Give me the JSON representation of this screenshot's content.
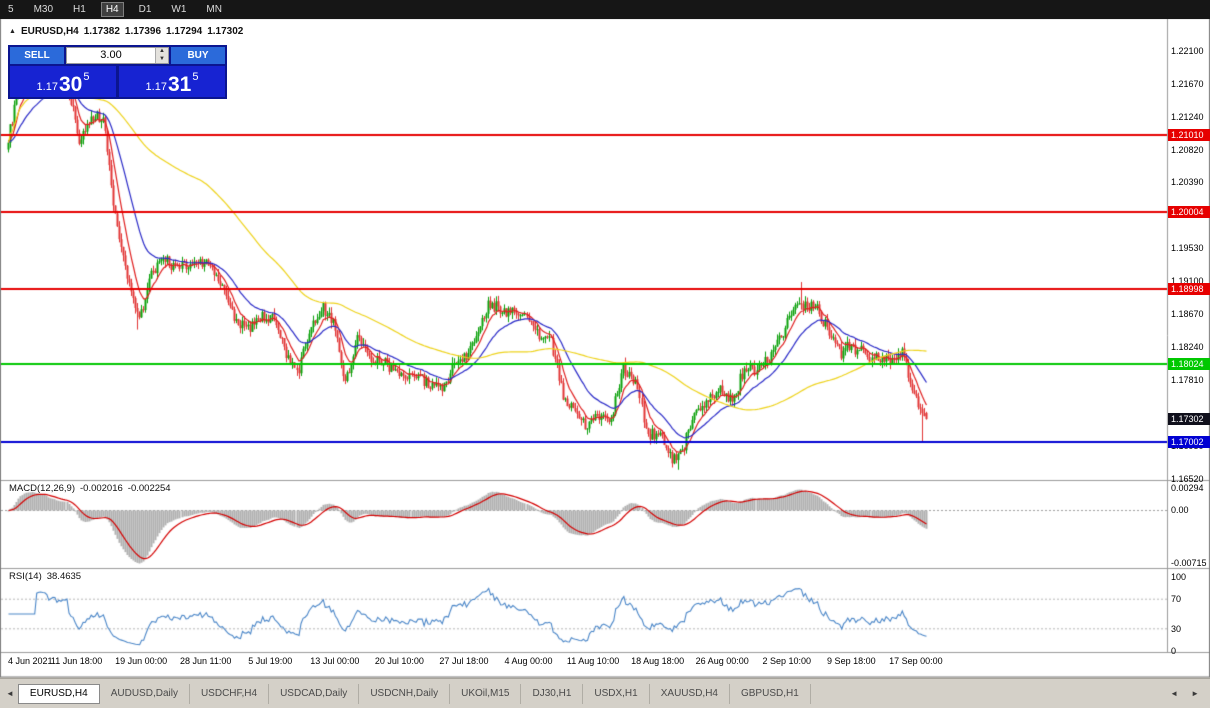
{
  "toolbar": {
    "timeframes": [
      "5",
      "M30",
      "H1",
      "H4",
      "D1",
      "W1",
      "MN"
    ],
    "active": "H4"
  },
  "chart": {
    "title": {
      "marker": "▲",
      "symbol": "EURUSD,H4",
      "open": "1.17382",
      "high": "1.17396",
      "low": "1.17294",
      "close": "1.17302"
    }
  },
  "trade_panel": {
    "sell_label": "SELL",
    "buy_label": "BUY",
    "lot": "3.00",
    "sell_price": {
      "prefix": "1.17",
      "big": "30",
      "sup": "5"
    },
    "buy_price": {
      "prefix": "1.17",
      "big": "31",
      "sup": "5"
    }
  },
  "tabs": {
    "items": [
      {
        "label": "EURUSD,H4",
        "active": true
      },
      {
        "label": "AUDUSD,Daily"
      },
      {
        "label": "USDCHF,H4"
      },
      {
        "label": "USDCAD,Daily"
      },
      {
        "label": "USDCNH,Daily"
      },
      {
        "label": "UKOil,M15"
      },
      {
        "label": "DJ30,H1"
      },
      {
        "label": "USDX,H1"
      },
      {
        "label": "XAUUSD,H4"
      },
      {
        "label": "GBPUSD,H1"
      }
    ],
    "scroll_left_icon": "◄",
    "scroll_right_icon": "►"
  },
  "chart_data": {
    "type": "candlestick",
    "symbol": "EURUSD",
    "timeframe": "H4",
    "bars_per_day": 6,
    "start_price": 1.2082,
    "daily_closes": [
      1.2166,
      1.2175,
      1.2168,
      1.2172,
      1.217,
      1.2096,
      1.2118,
      1.2126,
      1.1995,
      1.1915,
      1.1863,
      1.1919,
      1.194,
      1.1926,
      1.193,
      1.1937,
      1.1925,
      1.1897,
      1.1858,
      1.1846,
      1.1865,
      1.1863,
      1.1823,
      1.179,
      1.1845,
      1.1876,
      1.1861,
      1.1776,
      1.1838,
      1.1813,
      1.1806,
      1.1799,
      1.1782,
      1.1793,
      1.1771,
      1.177,
      1.1802,
      1.1816,
      1.1845,
      1.1885,
      1.187,
      1.1871,
      1.1863,
      1.1837,
      1.1833,
      1.1761,
      1.1738,
      1.172,
      1.1739,
      1.1729,
      1.1795,
      1.1777,
      1.171,
      1.1712,
      1.1675,
      1.1697,
      1.1745,
      1.1755,
      1.177,
      1.1751,
      1.1795,
      1.1797,
      1.181,
      1.184,
      1.1875,
      1.188,
      1.1872,
      1.1842,
      1.1817,
      1.1825,
      1.1813,
      1.181,
      1.1805,
      1.1816,
      1.1766,
      1.173
    ],
    "last_bar": {
      "open": 1.17382,
      "high": 1.17396,
      "low": 1.17294,
      "close": 1.17302
    },
    "extremes": [
      {
        "bar": 64,
        "low": 1.1847
      },
      {
        "bar": 243,
        "high": 1.1891
      },
      {
        "bar": 332,
        "low": 1.1664
      },
      {
        "bar": 393,
        "high": 1.1909
      },
      {
        "bar": 453,
        "low": 1.17008
      }
    ],
    "colors": {
      "bull": "#0aa10a",
      "bear": "#e23535"
    },
    "moving_averages": [
      {
        "period": 8,
        "method": "ema",
        "color": "#e02020"
      },
      {
        "period": 24,
        "method": "ema",
        "color": "#2a2ac8"
      },
      {
        "period": 96,
        "method": "sma",
        "color": "#eed31c"
      }
    ],
    "hlines": [
      {
        "price": 1.2101,
        "label": "1.21010",
        "color": "#e60000"
      },
      {
        "price": 1.20004,
        "label": "1.20004",
        "color": "#e60000"
      },
      {
        "price": 1.18998,
        "label": "1.18998",
        "color": "#e60000"
      },
      {
        "price": 1.18024,
        "label": "1.18024",
        "color": "#00c800"
      },
      {
        "price": 1.17002,
        "label": "1.17002",
        "color": "#0000d2"
      }
    ],
    "bid": {
      "price": 1.17302,
      "label": "1.17302",
      "color": "#10101c"
    },
    "price_axis_ticks": [
      {
        "label": "1.22100",
        "value": 1.221
      },
      {
        "label": "1.21670",
        "value": 1.2167
      },
      {
        "label": "1.21240",
        "value": 1.2124
      },
      {
        "label": "1.20820",
        "value": 1.2082
      },
      {
        "label": "1.20390",
        "value": 1.2039
      },
      {
        "label": "1.19530",
        "value": 1.1953
      },
      {
        "label": "1.19100",
        "value": 1.191
      },
      {
        "label": "1.18670",
        "value": 1.1867
      },
      {
        "label": "1.18240",
        "value": 1.1824
      },
      {
        "label": "1.17810",
        "value": 1.1781
      },
      {
        "label": "1.16950",
        "value": 1.1695
      },
      {
        "label": "1.16520",
        "value": 1.1652
      }
    ],
    "macd": {
      "name": "MACD(12,26,9)",
      "fast": 12,
      "slow": 26,
      "signal": 9,
      "value_main": "-0.002016",
      "value_signal": "-0.002254",
      "hist_color": "#b2b2b2",
      "signal_color": "#d40000",
      "axis_labels": [
        "0.00294",
        "0.00",
        "-0.00715"
      ]
    },
    "rsi": {
      "name": "RSI(14)",
      "period": 14,
      "value": "38.4635",
      "color": "#4a86c8",
      "axis_labels": [
        "100",
        "70",
        "30",
        "0"
      ],
      "levels": [
        70,
        30
      ]
    },
    "date_axis": [
      {
        "label": "4 Jun 2021",
        "bar": 0
      },
      {
        "label": "11 Jun 18:00",
        "bar": 34
      },
      {
        "label": "19 Jun 00:00",
        "bar": 66
      },
      {
        "label": "28 Jun 11:00",
        "bar": 98
      },
      {
        "label": "5 Jul 19:00",
        "bar": 130
      },
      {
        "label": "13 Jul 00:00",
        "bar": 162
      },
      {
        "label": "20 Jul 10:00",
        "bar": 194
      },
      {
        "label": "27 Jul 18:00",
        "bar": 226
      },
      {
        "label": "4 Aug 00:00",
        "bar": 258
      },
      {
        "label": "11 Aug 10:00",
        "bar": 290
      },
      {
        "label": "18 Aug 18:00",
        "bar": 322
      },
      {
        "label": "26 Aug 00:00",
        "bar": 354
      },
      {
        "label": "2 Sep 10:00",
        "bar": 386
      },
      {
        "label": "9 Sep 18:00",
        "bar": 418
      },
      {
        "label": "17 Sep 00:00",
        "bar": 450
      }
    ]
  }
}
